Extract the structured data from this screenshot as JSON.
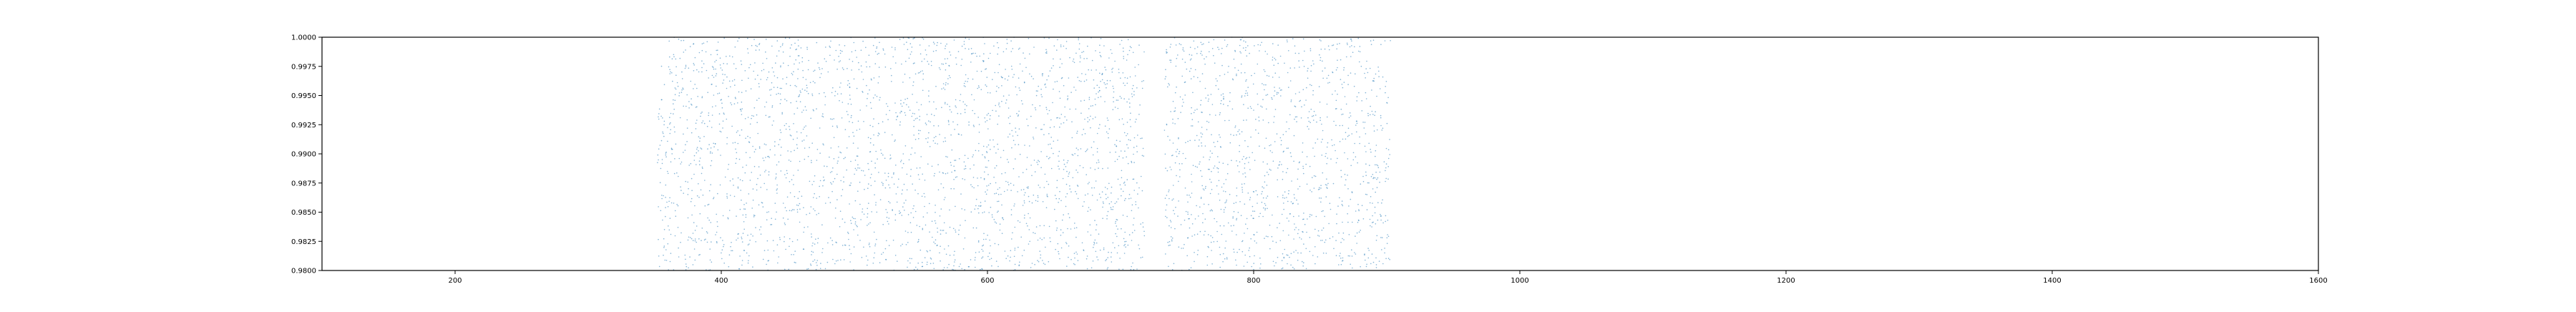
{
  "chart_data": {
    "type": "scatter",
    "title": "",
    "xlabel": "",
    "ylabel": "",
    "xlim": [
      100,
      1600
    ],
    "ylim": [
      0.98,
      1.0
    ],
    "x_ticks": [
      200,
      400,
      600,
      800,
      1000,
      1200,
      1400,
      1600
    ],
    "x_tick_labels": [
      "200",
      "400",
      "600",
      "800",
      "1000",
      "1200",
      "1400",
      "1600"
    ],
    "y_ticks": [
      0.98,
      0.9825,
      0.985,
      0.9875,
      0.99,
      0.9925,
      0.995,
      0.9975,
      1.0
    ],
    "y_tick_labels": [
      "0.9800",
      "0.9825",
      "0.9850",
      "0.9875",
      "0.9900",
      "0.9925",
      "0.9950",
      "0.9975",
      "1.0000"
    ],
    "grid": false,
    "legend": "none",
    "marker_color": "#1f77b4",
    "series": [
      {
        "x_ranges": [
          [
            352,
            718
          ],
          [
            733,
            903
          ]
        ],
        "y_range": [
          0.98,
          1.0
        ],
        "point_density": "dense",
        "description_of_values": "very many tiny points uniformly spread over y in [0.98, 1.0] for x within the listed ranges"
      }
    ]
  }
}
